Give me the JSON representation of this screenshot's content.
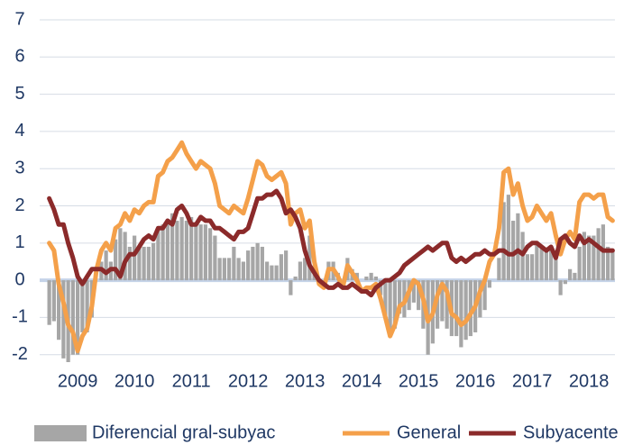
{
  "chart_data": {
    "type": "bar+line",
    "categories": [
      null,
      null,
      null,
      null,
      null,
      null,
      "2009",
      null,
      null,
      null,
      null,
      null,
      null,
      null,
      null,
      null,
      null,
      null,
      "2010",
      null,
      null,
      null,
      null,
      null,
      null,
      null,
      null,
      null,
      null,
      null,
      "2011",
      null,
      null,
      null,
      null,
      null,
      null,
      null,
      null,
      null,
      null,
      null,
      "2012",
      null,
      null,
      null,
      null,
      null,
      null,
      null,
      null,
      null,
      null,
      null,
      "2013",
      null,
      null,
      null,
      null,
      null,
      null,
      null,
      null,
      null,
      null,
      null,
      "2014",
      null,
      null,
      null,
      null,
      null,
      null,
      null,
      null,
      null,
      null,
      null,
      "2015",
      null,
      null,
      null,
      null,
      null,
      null,
      null,
      null,
      null,
      null,
      null,
      "2016",
      null,
      null,
      null,
      null,
      null,
      null,
      null,
      null,
      null,
      null,
      null,
      "2017",
      null,
      null,
      null,
      null,
      null,
      null,
      null,
      null,
      null,
      null,
      null,
      "2018",
      null,
      null,
      null,
      null,
      null
    ],
    "series": [
      {
        "name": "Diferencial gral-subyac",
        "type": "bar",
        "color": "#a6a6a6",
        "values": [
          -1.2,
          -1.1,
          -1.6,
          -2.1,
          -2.2,
          -2.0,
          -2.0,
          -1.4,
          -1.4,
          -1.0,
          0.0,
          0.5,
          0.8,
          0.5,
          1.1,
          1.4,
          1.3,
          0.9,
          1.2,
          0.9,
          0.9,
          0.9,
          1.0,
          1.4,
          1.5,
          1.6,
          1.8,
          1.6,
          1.7,
          1.6,
          1.7,
          1.5,
          1.5,
          1.5,
          1.4,
          1.2,
          0.6,
          0.6,
          0.6,
          0.9,
          0.6,
          0.5,
          0.8,
          0.9,
          1.0,
          0.9,
          0.5,
          0.4,
          0.4,
          0.7,
          0.8,
          -0.4,
          0.1,
          0.5,
          0.6,
          1.2,
          0.3,
          -0.1,
          -0.1,
          0.5,
          0.5,
          0.2,
          0.0,
          0.6,
          0.3,
          0.2,
          0.0,
          0.1,
          0.2,
          0.1,
          -0.4,
          -1.0,
          -1.5,
          -1.3,
          -0.9,
          -1.0,
          -0.8,
          -0.6,
          -0.8,
          -1.3,
          -2.0,
          -1.7,
          -1.3,
          -1.1,
          -1.3,
          -1.5,
          -1.5,
          -1.8,
          -1.6,
          -1.5,
          -1.4,
          -1.0,
          -0.8,
          -0.2,
          0.0,
          0.6,
          2.1,
          2.3,
          1.6,
          1.8,
          1.3,
          0.7,
          0.7,
          1.0,
          0.9,
          0.8,
          0.9,
          0.6,
          -0.4,
          -0.1,
          0.3,
          0.2,
          0.9,
          1.3,
          1.2,
          1.2,
          1.4,
          1.5,
          0.9,
          0.8
        ]
      },
      {
        "name": "General",
        "type": "line",
        "color": "#f4a04a",
        "values": [
          1.0,
          0.8,
          -0.1,
          -0.6,
          -1.2,
          -1.4,
          -1.9,
          -1.5,
          -1.3,
          -0.7,
          0.3,
          0.8,
          1.0,
          0.8,
          1.4,
          1.5,
          1.8,
          1.6,
          1.9,
          1.8,
          2.0,
          2.1,
          2.1,
          2.8,
          2.9,
          3.2,
          3.3,
          3.5,
          3.7,
          3.4,
          3.2,
          3.0,
          3.2,
          3.1,
          3.0,
          2.6,
          2.0,
          1.9,
          1.8,
          2.0,
          1.9,
          1.8,
          2.2,
          2.7,
          3.2,
          3.1,
          2.8,
          2.7,
          2.8,
          2.9,
          2.6,
          1.5,
          1.8,
          1.9,
          1.4,
          1.6,
          0.5,
          -0.1,
          -0.2,
          0.3,
          0.3,
          0.1,
          -0.2,
          0.4,
          0.2,
          0.0,
          -0.3,
          -0.2,
          -0.2,
          -0.1,
          -0.5,
          -1.0,
          -1.5,
          -1.2,
          -0.7,
          -0.6,
          -0.3,
          0.0,
          -0.1,
          -0.5,
          -1.1,
          -0.9,
          -0.4,
          -0.1,
          -0.3,
          -0.9,
          -1.0,
          -1.2,
          -1.1,
          -0.9,
          -0.7,
          -0.3,
          0.0,
          0.5,
          0.7,
          1.4,
          2.9,
          3.0,
          2.3,
          2.6,
          2.0,
          1.6,
          1.7,
          2.0,
          1.8,
          1.6,
          1.8,
          1.2,
          0.7,
          1.1,
          1.3,
          1.1,
          2.1,
          2.3,
          2.3,
          2.2,
          2.3,
          2.3,
          1.7,
          1.6
        ]
      },
      {
        "name": "Subyacente",
        "type": "line",
        "color": "#8b2a2a",
        "values": [
          2.2,
          1.9,
          1.5,
          1.5,
          1.0,
          0.6,
          0.1,
          -0.1,
          0.1,
          0.3,
          0.3,
          0.3,
          0.2,
          0.3,
          0.3,
          0.1,
          0.5,
          0.7,
          0.7,
          0.9,
          1.1,
          1.2,
          1.1,
          1.4,
          1.4,
          1.6,
          1.5,
          1.9,
          2.0,
          1.8,
          1.5,
          1.5,
          1.7,
          1.6,
          1.6,
          1.4,
          1.4,
          1.3,
          1.2,
          1.1,
          1.3,
          1.3,
          1.4,
          1.8,
          2.2,
          2.2,
          2.3,
          2.3,
          2.4,
          2.2,
          1.8,
          1.9,
          1.7,
          1.4,
          0.8,
          0.4,
          0.2,
          0.0,
          -0.1,
          -0.2,
          -0.2,
          -0.1,
          -0.2,
          -0.2,
          -0.1,
          -0.2,
          -0.3,
          -0.3,
          -0.4,
          -0.2,
          -0.1,
          0.0,
          0.0,
          0.1,
          0.2,
          0.4,
          0.5,
          0.6,
          0.7,
          0.8,
          0.9,
          0.8,
          0.9,
          1.0,
          1.0,
          0.6,
          0.5,
          0.6,
          0.5,
          0.6,
          0.7,
          0.7,
          0.8,
          0.7,
          0.7,
          0.8,
          0.8,
          0.7,
          0.7,
          0.8,
          0.7,
          0.9,
          1.0,
          1.0,
          0.9,
          0.8,
          0.9,
          0.6,
          1.1,
          1.2,
          1.0,
          0.9,
          1.2,
          1.0,
          1.1,
          1.0,
          0.9,
          0.8,
          0.8,
          0.8
        ]
      }
    ],
    "ylim": [
      -2.2,
      7
    ],
    "yticks": [
      -2,
      -1,
      0,
      1,
      2,
      3,
      4,
      5,
      6,
      7
    ],
    "grid": true,
    "legend": "bottom"
  }
}
